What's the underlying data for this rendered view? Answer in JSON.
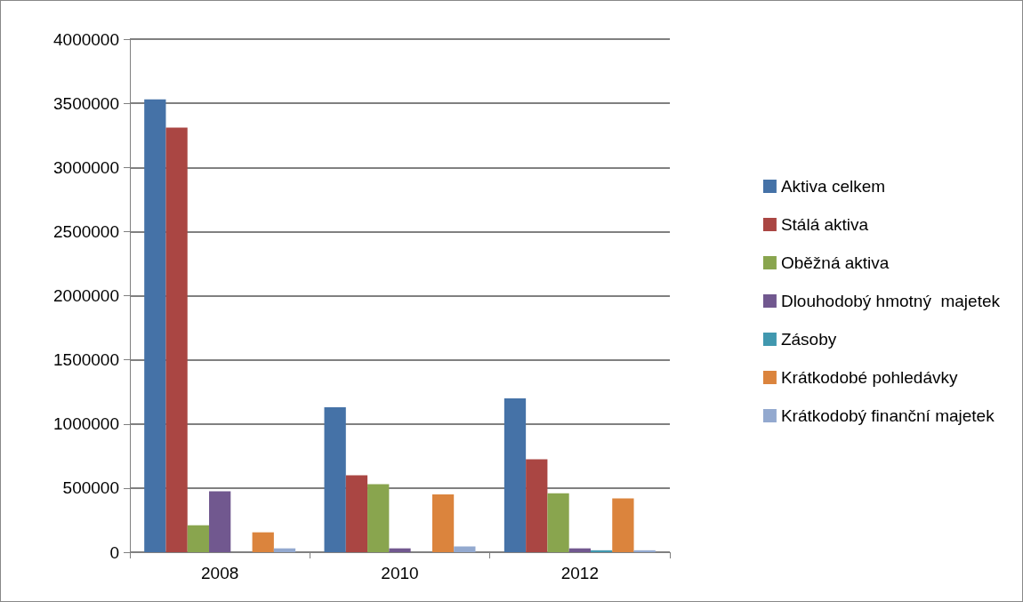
{
  "chart_data": {
    "type": "bar",
    "categories": [
      "2008",
      "2010",
      "2012"
    ],
    "series": [
      {
        "name": "Aktiva celkem",
        "color": "#4572a7",
        "values": [
          3530000,
          1130000,
          1200000
        ]
      },
      {
        "name": "Stálá aktiva",
        "color": "#aa4643",
        "values": [
          3310000,
          600000,
          725000
        ]
      },
      {
        "name": "Oběžná aktiva",
        "color": "#89a54e",
        "values": [
          210000,
          530000,
          460000
        ]
      },
      {
        "name": "Dlouhodobý hmotný  majetek",
        "color": "#71588f",
        "values": [
          475000,
          30000,
          30000
        ]
      },
      {
        "name": "Zásoby",
        "color": "#4198af",
        "values": [
          0,
          0,
          15000
        ]
      },
      {
        "name": "Krátkodobé pohledávky",
        "color": "#db843d",
        "values": [
          155000,
          450000,
          420000
        ]
      },
      {
        "name": "Krátkodobý finanční majetek",
        "color": "#93a9cf",
        "values": [
          30000,
          45000,
          15000
        ]
      }
    ],
    "ylim": [
      0,
      4000000
    ],
    "yticks": [
      0,
      500000,
      1000000,
      1500000,
      2000000,
      2500000,
      3000000,
      3500000,
      4000000
    ],
    "grid": "y",
    "legend": "right"
  }
}
